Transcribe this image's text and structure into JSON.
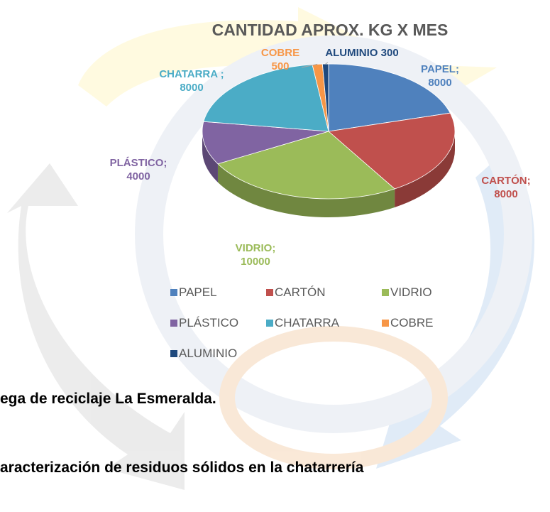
{
  "chart_data": {
    "type": "pie",
    "title": "CANTIDAD APROX. KG X MES",
    "categories": [
      "PAPEL",
      "CARTÓN",
      "VIDRIO",
      "PLÁSTICO",
      "CHATARRA",
      "COBRE",
      "ALUMINIO"
    ],
    "values": [
      8000,
      8000,
      10000,
      4000,
      8000,
      500,
      300
    ],
    "value_labels": [
      "PAPEL; 8000",
      "CARTÓN; 8000",
      "VIDRIO; 10000",
      "PLÁSTICO; 4000",
      "CHATARRA ; 8000",
      "COBRE 500",
      "ALUMINIO 300"
    ],
    "colors": [
      "#4f81bd",
      "#c0504d",
      "#9bbb59",
      "#8064a2",
      "#4bacc6",
      "#f79646",
      "#1f497d"
    ],
    "legend": "bottom"
  },
  "document": {
    "lines": [
      "ega de reciclaje La Esmeralda.",
      "aracterización de residuos sólidos en la chatarrería"
    ]
  }
}
